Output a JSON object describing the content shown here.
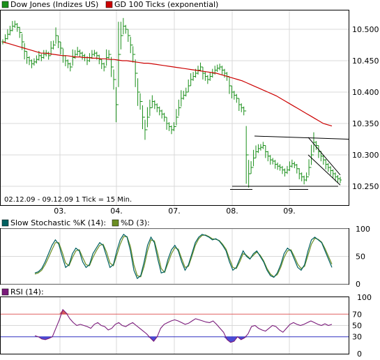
{
  "chart_data": [
    {
      "type": "line",
      "panel": "price",
      "legend": [
        "Dow Jones (Indizes US)",
        "GD 100 Ticks (exponential)"
      ],
      "info_label": "02.12.09 - 09.12.09   1 Tick = 15 Min.",
      "x_labels": [
        "03.",
        "04.",
        "07.",
        "08.",
        "09."
      ],
      "y_ticks": [
        "10.500",
        "10.450",
        "10.400",
        "10.350",
        "10.300",
        "10.250"
      ],
      "ylim": [
        10220,
        10530
      ],
      "series": [
        {
          "name": "Dow Jones (Indizes US)",
          "color": "#1a8f1a",
          "values": [
            10480,
            10485,
            10492,
            10498,
            10505,
            10508,
            10503,
            10495,
            10480,
            10465,
            10455,
            10450,
            10445,
            10448,
            10452,
            10458,
            10455,
            10460,
            10462,
            10458,
            10470,
            10475,
            10490,
            10480,
            10470,
            10458,
            10450,
            10445,
            10440,
            10455,
            10460,
            10465,
            10462,
            10458,
            10455,
            10450,
            10455,
            10460,
            10462,
            10458,
            10452,
            10445,
            10440,
            10455,
            10460,
            10440,
            10420,
            10380,
            10460,
            10490,
            10505,
            10500,
            10490,
            10475,
            10460,
            10430,
            10400,
            10385,
            10360,
            10340,
            10360,
            10375,
            10385,
            10380,
            10375,
            10370,
            10365,
            10360,
            10350,
            10345,
            10340,
            10345,
            10360,
            10375,
            10390,
            10395,
            10400,
            10410,
            10420,
            10425,
            10430,
            10435,
            10440,
            10430,
            10425,
            10420,
            10425,
            10430,
            10435,
            10438,
            10440,
            10435,
            10430,
            10425,
            10410,
            10400,
            10395,
            10390,
            10380,
            10375,
            10370,
            10300,
            10270,
            10280,
            10295,
            10305,
            10310,
            10312,
            10315,
            10305,
            10298,
            10292,
            10290,
            10285,
            10282,
            10280,
            10276,
            10272,
            10276,
            10282,
            10286,
            10284,
            10278,
            10270,
            10265,
            10260,
            10265,
            10280,
            10300,
            10320,
            10315,
            10305,
            10298,
            10292,
            10285,
            10280,
            10275,
            10270,
            10265,
            10262,
            10260
          ]
        },
        {
          "name": "GD 100 Ticks (exponential)",
          "color": "#cc0000",
          "values": [
            10480,
            10478,
            10476,
            10474,
            10472,
            10470,
            10468,
            10466,
            10464,
            10462,
            10462,
            10461,
            10460,
            10459,
            10458,
            10458,
            10457,
            10456,
            10456,
            10455,
            10455,
            10454,
            10454,
            10453,
            10453,
            10452,
            10452,
            10451,
            10450,
            10450,
            10449,
            10448,
            10447,
            10446,
            10446,
            10445,
            10444,
            10443,
            10442,
            10441,
            10440,
            10439,
            10438,
            10437,
            10436,
            10435,
            10434,
            10433,
            10432,
            10431,
            10430,
            10428,
            10426,
            10424,
            10422,
            10420,
            10418,
            10415,
            10412,
            10409,
            10406,
            10403,
            10400,
            10397,
            10394,
            10390,
            10386,
            10382,
            10378,
            10374,
            10370,
            10366,
            10362,
            10358,
            10354,
            10350,
            10348,
            10346
          ]
        }
      ],
      "annotations": [
        "resistance 10.330",
        "support 10.250",
        "down channel"
      ]
    },
    {
      "type": "line",
      "panel": "stochastic",
      "legend": [
        "Slow Stochastic %K (14):",
        "%D (3):"
      ],
      "y_ticks": [
        "100",
        "50",
        "0"
      ],
      "ylim": [
        0,
        100
      ],
      "series": [
        {
          "name": "Slow Stochastic %K (14):",
          "color": "#006060",
          "values": [
            20,
            22,
            28,
            40,
            55,
            70,
            80,
            72,
            50,
            30,
            35,
            55,
            65,
            60,
            40,
            30,
            35,
            55,
            65,
            75,
            70,
            50,
            30,
            35,
            60,
            80,
            90,
            85,
            60,
            25,
            10,
            15,
            40,
            70,
            85,
            75,
            45,
            20,
            22,
            45,
            62,
            70,
            60,
            40,
            25,
            35,
            55,
            75,
            85,
            90,
            88,
            85,
            80,
            82,
            78,
            70,
            60,
            40,
            25,
            30,
            45,
            60,
            50,
            45,
            55,
            60,
            50,
            40,
            25,
            15,
            12,
            20,
            35,
            55,
            65,
            60,
            45,
            30,
            25,
            35,
            60,
            80,
            85,
            80,
            75,
            60,
            45,
            30
          ]
        },
        {
          "name": "%D (3):",
          "color": "#6b8e23",
          "values": [
            18,
            20,
            25,
            35,
            48,
            62,
            75,
            75,
            58,
            38,
            33,
            48,
            60,
            62,
            48,
            35,
            33,
            48,
            60,
            70,
            72,
            58,
            38,
            33,
            52,
            72,
            86,
            86,
            68,
            35,
            15,
            13,
            32,
            60,
            80,
            78,
            55,
            28,
            21,
            38,
            55,
            66,
            63,
            46,
            30,
            32,
            50,
            70,
            82,
            88,
            89,
            86,
            82,
            81,
            79,
            72,
            63,
            46,
            30,
            28,
            40,
            55,
            52,
            46,
            52,
            58,
            52,
            42,
            28,
            18,
            13,
            17,
            30,
            48,
            60,
            62,
            50,
            36,
            28,
            32,
            52,
            72,
            83,
            81,
            76,
            64,
            50,
            36
          ]
        }
      ]
    },
    {
      "type": "line",
      "panel": "rsi",
      "legend": [
        "RSI (14):"
      ],
      "y_ticks": [
        "100",
        "70",
        "50",
        "30",
        "0"
      ],
      "ylim": [
        0,
        100
      ],
      "levels": [
        70,
        30
      ],
      "series": [
        {
          "name": "RSI (14):",
          "color": "#7a1a7a",
          "values": [
            32,
            30,
            26,
            25,
            27,
            30,
            45,
            60,
            78,
            72,
            62,
            55,
            50,
            52,
            50,
            48,
            45,
            52,
            55,
            50,
            48,
            42,
            45,
            52,
            55,
            50,
            48,
            52,
            55,
            50,
            45,
            40,
            35,
            28,
            22,
            30,
            45,
            52,
            55,
            58,
            60,
            58,
            55,
            52,
            54,
            58,
            62,
            60,
            58,
            56,
            55,
            58,
            52,
            45,
            38,
            25,
            20,
            22,
            30,
            25,
            28,
            35,
            48,
            50,
            45,
            42,
            40,
            45,
            50,
            48,
            42,
            38,
            45,
            52,
            55,
            52,
            50,
            52,
            55,
            58,
            55,
            52,
            50,
            53,
            50,
            52
          ]
        }
      ]
    }
  ]
}
